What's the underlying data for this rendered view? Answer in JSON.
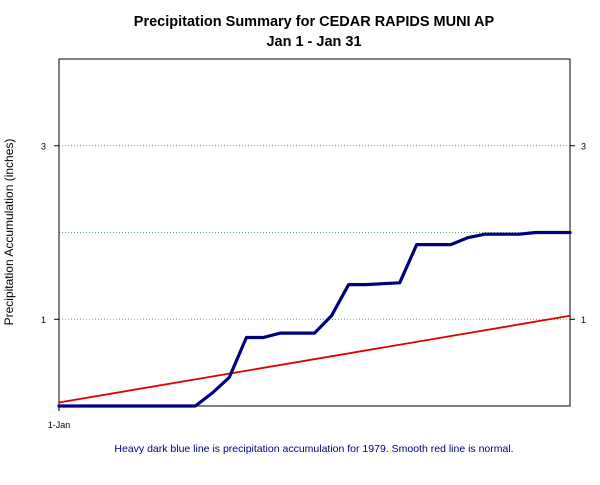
{
  "chart_data": {
    "type": "line",
    "title": "Precipitation Summary for CEDAR RAPIDS MUNI AP",
    "subtitle": "Jan 1 - Jan 31",
    "ylabel": "Precipitation Accumulation (inches)",
    "xlabel": "",
    "xlim": [
      1,
      31
    ],
    "ylim": [
      0,
      4
    ],
    "x_ticks": [
      {
        "value": 1,
        "label": "1-Jan"
      }
    ],
    "y_ticks_left": [
      {
        "value": 1,
        "label": "1"
      },
      {
        "value": 3,
        "label": "3"
      }
    ],
    "y_ticks_right": [
      {
        "value": 1,
        "label": "1"
      },
      {
        "value": 3,
        "label": "3"
      }
    ],
    "gridlines_y": [
      1,
      2,
      3
    ],
    "grid": "horizontal dotted",
    "legend": "none",
    "footnote": "Heavy dark blue line is precipitation accumulation for 1979. Smooth red line is normal.",
    "series": [
      {
        "x": [
          1,
          2,
          3,
          4,
          5,
          6,
          7,
          8,
          9,
          10,
          11,
          12,
          13,
          14,
          15,
          16,
          17,
          18,
          19,
          20,
          21,
          22,
          23,
          24,
          25,
          26,
          27,
          28,
          29,
          30,
          31
        ],
        "values": [
          0,
          0,
          0,
          0,
          0,
          0,
          0,
          0,
          0,
          0.15,
          0.33,
          0.79,
          0.79,
          0.84,
          0.84,
          0.84,
          1.04,
          1.4,
          1.4,
          1.41,
          1.42,
          1.86,
          1.86,
          1.86,
          1.94,
          1.98,
          1.98,
          1.98,
          2.0,
          2.0,
          2.0
        ],
        "color": "#000080",
        "stroke": "heavy"
      },
      {
        "x": [
          1,
          31
        ],
        "values": [
          0.04,
          1.04
        ],
        "color": "#dd0000",
        "stroke": "smooth"
      }
    ]
  },
  "colors": {
    "frame": "#000000",
    "grid": "#55aa77",
    "footnote": "#000080"
  }
}
